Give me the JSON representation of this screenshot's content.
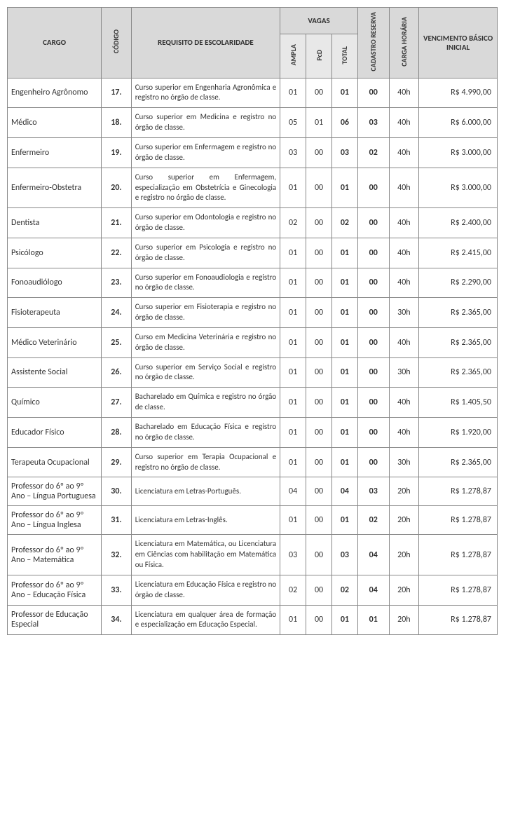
{
  "headers": {
    "cargo": "CARGO",
    "codigo": "CÓDIGO",
    "requisito": "REQUISITO DE ESCOLARIDADE",
    "vagas": "VAGAS",
    "ampla": "AMPLA",
    "pcd": "PcD",
    "total": "TOTAL",
    "cadastro": "CADASTRO RESERVA",
    "carga": "CARGA HORÁRIA",
    "vencimento": "VENCIMENTO BÁSICO INICIAL"
  },
  "rows": [
    {
      "cargo": "Engenheiro Agrônomo",
      "codigo": "17.",
      "req": "Curso superior em Engenharia Agronômica e registro no órgão de classe.",
      "ampla": "01",
      "pcd": "00",
      "total": "01",
      "cad": "00",
      "carga": "40h",
      "venc": "R$ 4.990,00"
    },
    {
      "cargo": "Médico",
      "codigo": "18.",
      "req": "Curso superior em Medicina e registro no órgão de classe.",
      "ampla": "05",
      "pcd": "01",
      "total": "06",
      "cad": "03",
      "carga": "40h",
      "venc": "R$ 6.000,00"
    },
    {
      "cargo": "Enfermeiro",
      "codigo": "19.",
      "req": "Curso superior em Enfermagem e registro no órgão de classe.",
      "ampla": "03",
      "pcd": "00",
      "total": "03",
      "cad": "02",
      "carga": "40h",
      "venc": "R$ 3.000,00"
    },
    {
      "cargo": "Enfermeiro-Obstetra",
      "codigo": "20.",
      "req": "Curso superior em Enfermagem, especialização em Obstetrícia e Ginecologia e registro no órgão de classe.",
      "ampla": "01",
      "pcd": "00",
      "total": "01",
      "cad": "00",
      "carga": "40h",
      "venc": "R$ 3.000,00"
    },
    {
      "cargo": "Dentista",
      "codigo": "21.",
      "req": "Curso superior em Odontologia e registro no órgão de classe.",
      "ampla": "02",
      "pcd": "00",
      "total": "02",
      "cad": "00",
      "carga": "40h",
      "venc": "R$ 2.400,00"
    },
    {
      "cargo": "Psicólogo",
      "codigo": "22.",
      "req": "Curso superior em Psicologia e registro no órgão de classe.",
      "ampla": "01",
      "pcd": "00",
      "total": "01",
      "cad": "00",
      "carga": "40h",
      "venc": "R$ 2.415,00"
    },
    {
      "cargo": "Fonoaudiólogo",
      "codigo": "23.",
      "req": "Curso superior em Fonoaudiologia e registro no órgão de classe.",
      "ampla": "01",
      "pcd": "00",
      "total": "01",
      "cad": "00",
      "carga": "40h",
      "venc": "R$ 2.290,00"
    },
    {
      "cargo": "Fisioterapeuta",
      "codigo": "24.",
      "req": "Curso superior em Fisioterapia e registro no órgão de classe.",
      "ampla": "01",
      "pcd": "00",
      "total": "01",
      "cad": "00",
      "carga": "30h",
      "venc": "R$ 2.365,00"
    },
    {
      "cargo": "Médico Veterinário",
      "codigo": "25.",
      "req": "Curso em Medicina Veterinária e registro no órgão de classe.",
      "ampla": "01",
      "pcd": "00",
      "total": "01",
      "cad": "00",
      "carga": "40h",
      "venc": "R$ 2.365,00"
    },
    {
      "cargo": "Assistente Social",
      "codigo": "26.",
      "req": "Curso superior em Serviço Social e registro no órgão de classe.",
      "ampla": "01",
      "pcd": "00",
      "total": "01",
      "cad": "00",
      "carga": "30h",
      "venc": "R$ 2.365,00"
    },
    {
      "cargo": "Químico",
      "codigo": "27.",
      "req": "Bacharelado em Química e registro no órgão de classe.",
      "ampla": "01",
      "pcd": "00",
      "total": "01",
      "cad": "00",
      "carga": "40h",
      "venc": "R$ 1.405,50"
    },
    {
      "cargo": "Educador Físico",
      "codigo": "28.",
      "req": "Bacharelado em Educação Física e registro no órgão de classe.",
      "ampla": "01",
      "pcd": "00",
      "total": "01",
      "cad": "00",
      "carga": "40h",
      "venc": "R$ 1.920,00"
    },
    {
      "cargo": "Terapeuta Ocupacional",
      "codigo": "29.",
      "req": "Curso superior em Terapia Ocupacional e registro no órgão de classe.",
      "ampla": "01",
      "pcd": "00",
      "total": "01",
      "cad": "00",
      "carga": "30h",
      "venc": "R$ 2.365,00"
    },
    {
      "cargo": "Professor do 6º ao 9º Ano – Língua Portuguesa",
      "codigo": "30.",
      "req": "Licenciatura em Letras-Português.",
      "ampla": "04",
      "pcd": "00",
      "total": "04",
      "cad": "03",
      "carga": "20h",
      "venc": "R$ 1.278,87"
    },
    {
      "cargo": "Professor do 6º ao 9º Ano – Língua Inglesa",
      "codigo": "31.",
      "req": "Licenciatura em Letras-Inglês.",
      "ampla": "01",
      "pcd": "00",
      "total": "01",
      "cad": "02",
      "carga": "20h",
      "venc": "R$ 1.278,87"
    },
    {
      "cargo": "Professor do 6º ao 9º Ano – Matemática",
      "codigo": "32.",
      "req": "Licenciatura em Matemática, ou Licenciatura em Ciências com habilitação em Matemática ou Física.",
      "ampla": "03",
      "pcd": "00",
      "total": "03",
      "cad": "04",
      "carga": "20h",
      "venc": "R$ 1.278,87"
    },
    {
      "cargo": "Professor do 6º ao 9º Ano – Educação Física",
      "codigo": "33.",
      "req": "Licenciatura em Educação Física e registro no órgão de classe.",
      "ampla": "02",
      "pcd": "00",
      "total": "02",
      "cad": "04",
      "carga": "20h",
      "venc": "R$ 1.278,87"
    },
    {
      "cargo": "Professor de Educação Especial",
      "codigo": "34.",
      "req": "Licenciatura em qualquer área de formação e especialização em Educação Especial.",
      "ampla": "01",
      "pcd": "00",
      "total": "01",
      "cad": "01",
      "carga": "20h",
      "venc": "R$ 1.278,87"
    }
  ]
}
